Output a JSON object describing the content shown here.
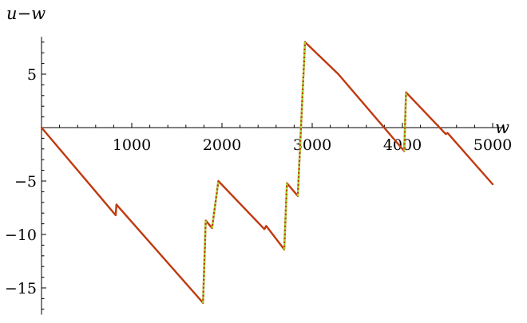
{
  "chart_data": {
    "type": "line",
    "xlabel": "w",
    "ylabel": "u−w",
    "xlim": [
      0,
      5000
    ],
    "ylim": [
      -17.5,
      8.5
    ],
    "x_ticks": [
      1000,
      2000,
      3000,
      4000,
      5000
    ],
    "x_tick_labels": [
      "1000",
      "2000",
      "3000",
      "4000",
      "5000"
    ],
    "y_ticks": [
      5,
      -5,
      -10,
      -15
    ],
    "y_tick_labels": [
      "5",
      "−5",
      "−10",
      "−15"
    ],
    "grid": false,
    "colors": {
      "main": "#c0390e",
      "steep": "#a6d92e",
      "axis": "#000000"
    },
    "series": [
      {
        "points": [
          [
            0,
            0
          ],
          [
            822,
            -8.2
          ],
          [
            830,
            -7.2
          ],
          [
            1790,
            -16.4
          ],
          [
            1820,
            -8.7
          ],
          [
            1890,
            -9.4
          ],
          [
            1960,
            -5.0
          ],
          [
            2470,
            -9.5
          ],
          [
            2490,
            -9.2
          ],
          [
            2690,
            -11.4
          ],
          [
            2720,
            -5.2
          ],
          [
            2840,
            -6.4
          ],
          [
            2920,
            8.0
          ],
          [
            3290,
            5.0
          ],
          [
            4020,
            -2.2
          ],
          [
            4040,
            3.3
          ],
          [
            4480,
            -0.6
          ],
          [
            4500,
            -0.5
          ],
          [
            5000,
            -5.3
          ]
        ]
      },
      {
        "points": [
          [
            1790,
            -16.4
          ],
          [
            1820,
            -8.7
          ],
          [
            1890,
            -9.4
          ],
          [
            1960,
            -5.0
          ],
          [
            2690,
            -11.4
          ],
          [
            2720,
            -5.2
          ],
          [
            2840,
            -6.4
          ],
          [
            2920,
            8.0
          ],
          [
            4020,
            -2.2
          ],
          [
            4040,
            3.3
          ]
        ]
      }
    ]
  }
}
